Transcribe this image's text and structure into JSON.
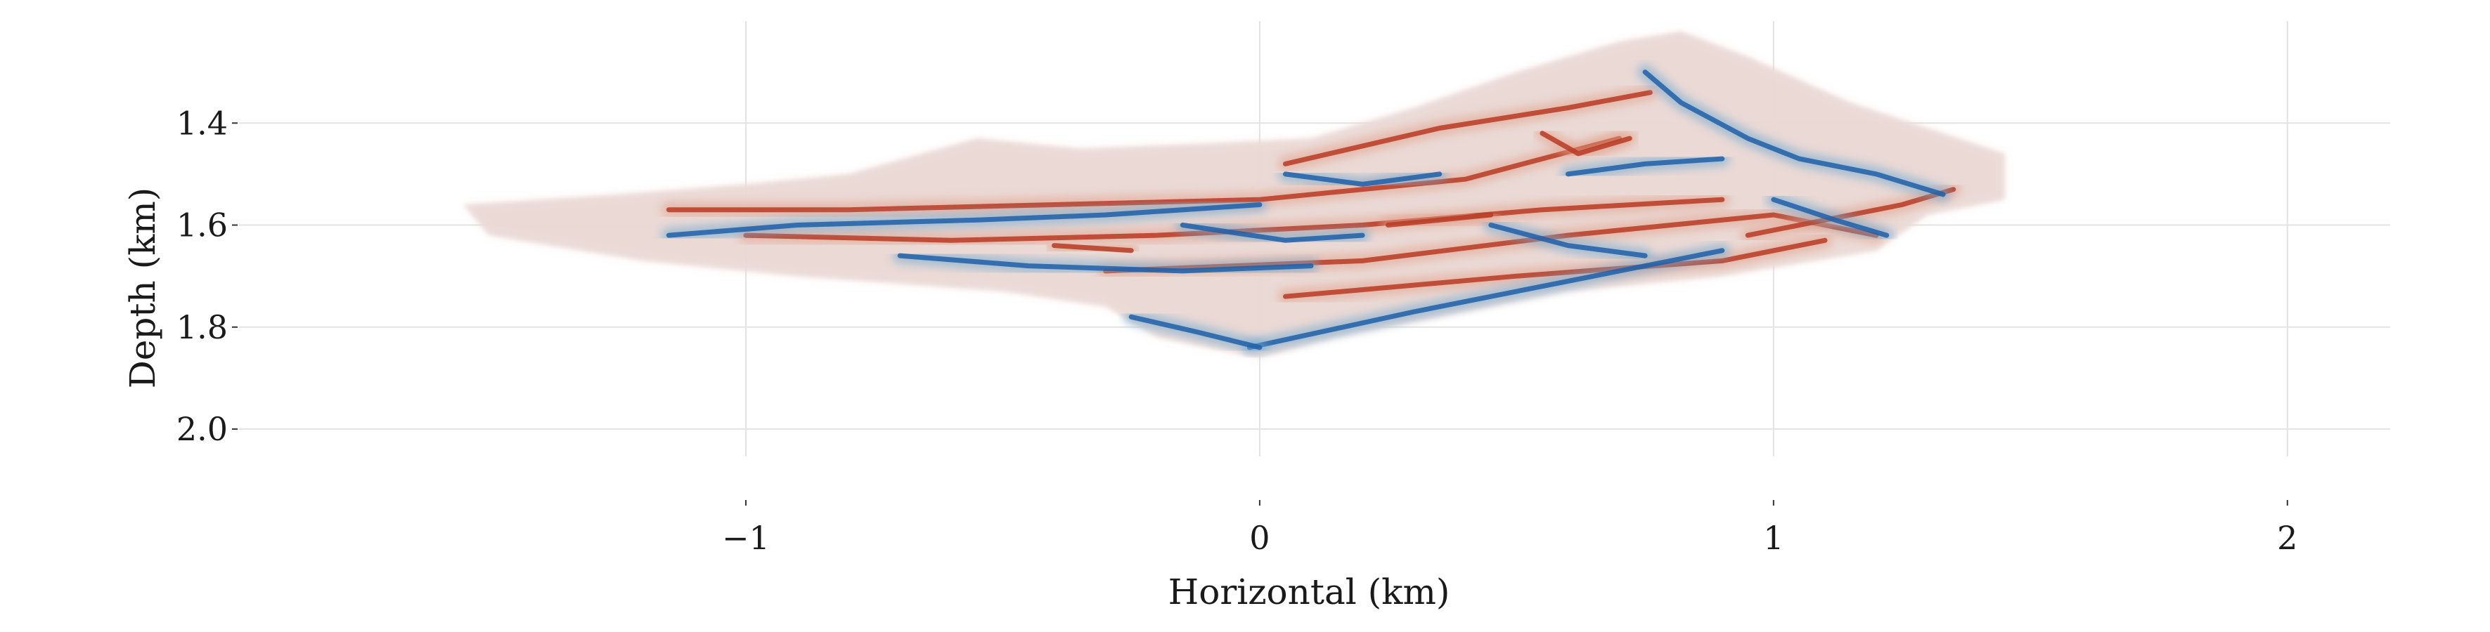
{
  "chart_data": {
    "type": "heatmap",
    "xlabel": "Horizontal (km)",
    "ylabel": "Depth (km)",
    "xlim": [
      -2.0,
      2.2
    ],
    "ylim": [
      2.15,
      1.2
    ],
    "y_inverted": true,
    "grid": true,
    "xticks": [
      -1,
      0,
      1,
      2
    ],
    "xtick_labels": [
      "−1",
      "0",
      "1",
      "2"
    ],
    "yticks": [
      1.4,
      1.6,
      1.8,
      2.0
    ],
    "ytick_labels": [
      "1.4",
      "1.6",
      "1.8",
      "2.0"
    ],
    "colormap": [
      "#1f5fa8",
      "#6fa8cf",
      "#eef0f3",
      "#e2a08a",
      "#b83a23"
    ],
    "background_color": "#ede6e6",
    "image_extent": {
      "points": [
        [
          -1.55,
          1.56
        ],
        [
          -1.25,
          1.54
        ],
        [
          -1.0,
          1.52
        ],
        [
          -0.8,
          1.5
        ],
        [
          -0.55,
          1.43
        ],
        [
          -0.35,
          1.45
        ],
        [
          -0.1,
          1.44
        ],
        [
          0.1,
          1.43
        ],
        [
          0.3,
          1.37
        ],
        [
          0.5,
          1.3
        ],
        [
          0.7,
          1.24
        ],
        [
          0.82,
          1.22
        ],
        [
          0.95,
          1.27
        ],
        [
          1.15,
          1.36
        ],
        [
          1.45,
          1.46
        ],
        [
          1.45,
          1.55
        ],
        [
          1.3,
          1.58
        ],
        [
          1.2,
          1.65
        ],
        [
          0.9,
          1.7
        ],
        [
          0.6,
          1.73
        ],
        [
          0.35,
          1.78
        ],
        [
          0.15,
          1.82
        ],
        [
          0.0,
          1.86
        ],
        [
          -0.2,
          1.82
        ],
        [
          -0.3,
          1.76
        ],
        [
          -0.5,
          1.73
        ],
        [
          -0.9,
          1.7
        ],
        [
          -1.2,
          1.67
        ],
        [
          -1.5,
          1.62
        ]
      ]
    },
    "reflectors": [
      {
        "polarity": "positive",
        "points": [
          [
            0.05,
            1.48
          ],
          [
            0.35,
            1.41
          ],
          [
            0.6,
            1.37
          ],
          [
            0.76,
            1.34
          ]
        ]
      },
      {
        "polarity": "positive",
        "points": [
          [
            -1.15,
            1.57
          ],
          [
            -0.8,
            1.57
          ],
          [
            -0.4,
            1.56
          ],
          [
            0.0,
            1.55
          ],
          [
            0.4,
            1.51
          ],
          [
            0.7,
            1.43
          ]
        ]
      },
      {
        "polarity": "positive",
        "points": [
          [
            -1.0,
            1.62
          ],
          [
            -0.6,
            1.63
          ],
          [
            -0.2,
            1.62
          ],
          [
            0.2,
            1.6
          ],
          [
            0.55,
            1.57
          ],
          [
            0.9,
            1.55
          ]
        ]
      },
      {
        "polarity": "positive",
        "points": [
          [
            -0.3,
            1.69
          ],
          [
            0.2,
            1.67
          ],
          [
            0.6,
            1.62
          ],
          [
            1.0,
            1.58
          ],
          [
            1.2,
            1.62
          ]
        ]
      },
      {
        "polarity": "positive",
        "points": [
          [
            0.05,
            1.74
          ],
          [
            0.5,
            1.7
          ],
          [
            0.9,
            1.67
          ],
          [
            1.1,
            1.63
          ]
        ]
      },
      {
        "polarity": "positive",
        "points": [
          [
            0.95,
            1.62
          ],
          [
            1.1,
            1.59
          ],
          [
            1.25,
            1.56
          ],
          [
            1.35,
            1.53
          ]
        ]
      },
      {
        "polarity": "positive",
        "points": [
          [
            0.55,
            1.42
          ],
          [
            0.62,
            1.46
          ],
          [
            0.72,
            1.43
          ]
        ]
      },
      {
        "polarity": "positive",
        "points": [
          [
            -0.4,
            1.64
          ],
          [
            -0.25,
            1.65
          ]
        ]
      },
      {
        "polarity": "positive",
        "points": [
          [
            0.25,
            1.6
          ],
          [
            0.45,
            1.58
          ]
        ]
      },
      {
        "polarity": "negative",
        "points": [
          [
            -0.02,
            1.84
          ],
          [
            0.3,
            1.77
          ],
          [
            0.6,
            1.71
          ],
          [
            0.9,
            1.65
          ]
        ]
      },
      {
        "polarity": "negative",
        "points": [
          [
            -0.25,
            1.78
          ],
          [
            -0.12,
            1.81
          ],
          [
            0.0,
            1.84
          ]
        ]
      },
      {
        "polarity": "negative",
        "points": [
          [
            -1.15,
            1.62
          ],
          [
            -0.9,
            1.6
          ],
          [
            -0.55,
            1.59
          ],
          [
            -0.3,
            1.58
          ],
          [
            0.0,
            1.56
          ]
        ]
      },
      {
        "polarity": "negative",
        "points": [
          [
            -0.7,
            1.66
          ],
          [
            -0.45,
            1.68
          ],
          [
            -0.15,
            1.69
          ],
          [
            0.1,
            1.68
          ]
        ]
      },
      {
        "polarity": "negative",
        "points": [
          [
            0.45,
            1.6
          ],
          [
            0.6,
            1.64
          ],
          [
            0.75,
            1.66
          ]
        ]
      },
      {
        "polarity": "negative",
        "points": [
          [
            0.75,
            1.3
          ],
          [
            0.82,
            1.36
          ],
          [
            0.95,
            1.43
          ],
          [
            1.05,
            1.47
          ],
          [
            1.2,
            1.5
          ],
          [
            1.33,
            1.54
          ]
        ]
      },
      {
        "polarity": "negative",
        "points": [
          [
            0.05,
            1.5
          ],
          [
            0.2,
            1.52
          ],
          [
            0.35,
            1.5
          ]
        ]
      },
      {
        "polarity": "negative",
        "points": [
          [
            0.6,
            1.5
          ],
          [
            0.75,
            1.48
          ],
          [
            0.9,
            1.47
          ]
        ]
      },
      {
        "polarity": "negative",
        "points": [
          [
            1.0,
            1.55
          ],
          [
            1.12,
            1.59
          ],
          [
            1.22,
            1.62
          ]
        ]
      },
      {
        "polarity": "negative",
        "points": [
          [
            -0.15,
            1.6
          ],
          [
            0.05,
            1.63
          ],
          [
            0.2,
            1.62
          ]
        ]
      }
    ]
  }
}
